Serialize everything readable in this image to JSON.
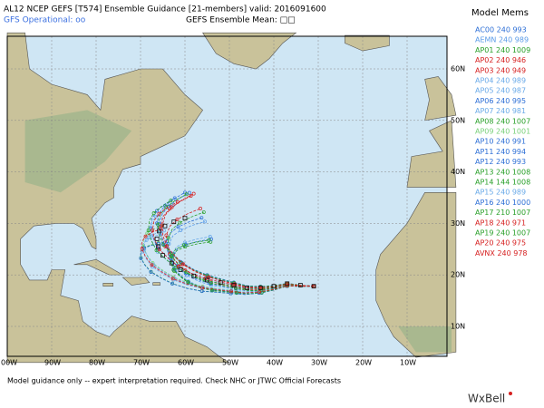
{
  "header": {
    "line1": "AL12 NCEP GEFS [T574] Ensemble Guidance [21-members] valid: 2016091600",
    "gfs_operational": "GFS Operational: oo",
    "ensemble_mean": "GEFS Ensemble Mean: □□"
  },
  "legend": {
    "title": "Model Mems",
    "entries": [
      {
        "text": "AC00 240 993",
        "color": "#2d6fd6"
      },
      {
        "text": "AEMN 240 989",
        "color": "#5a9be8"
      },
      {
        "text": "AP01 240 1009",
        "color": "#2aa02a"
      },
      {
        "text": "AP02 240 946",
        "color": "#d62020"
      },
      {
        "text": "AP03 240 949",
        "color": "#d62020"
      },
      {
        "text": "AP04 240 989",
        "color": "#6aaae8"
      },
      {
        "text": "AP05 240 987",
        "color": "#6aaae8"
      },
      {
        "text": "AP06 240 995",
        "color": "#2d6fd6"
      },
      {
        "text": "AP07 240 981",
        "color": "#6aaae8"
      },
      {
        "text": "AP08 240 1007",
        "color": "#2aa02a"
      },
      {
        "text": "AP09 240 1001",
        "color": "#7ad07a"
      },
      {
        "text": "AP10 240 991",
        "color": "#2d6fd6"
      },
      {
        "text": "AP11 240 994",
        "color": "#2d6fd6"
      },
      {
        "text": "AP12 240 993",
        "color": "#2d6fd6"
      },
      {
        "text": "AP13 240 1008",
        "color": "#2aa02a"
      },
      {
        "text": "AP14 144 1008",
        "color": "#2aa02a"
      },
      {
        "text": "AP15 240 989",
        "color": "#6aaae8"
      },
      {
        "text": "AP16 240 1000",
        "color": "#2d6fd6"
      },
      {
        "text": "AP17 210 1007",
        "color": "#2aa02a"
      },
      {
        "text": "AP18 240 971",
        "color": "#d62020"
      },
      {
        "text": "AP19 240 1007",
        "color": "#2aa02a"
      },
      {
        "text": "AP20 240 975",
        "color": "#d62020"
      },
      {
        "text": "AVNX 240 978",
        "color": "#d62020"
      }
    ]
  },
  "axes": {
    "lon_labels": [
      "00W",
      "90W",
      "80W",
      "70W",
      "60W",
      "50W",
      "40W",
      "30W",
      "20W",
      "10W"
    ],
    "lat_labels": [
      "60N",
      "50N",
      "40N",
      "30N",
      "20N",
      "10N"
    ]
  },
  "footer": "Model guidance only -- expert interpretation required.  Check NHC or JTWC Official Forecasts",
  "logo": "WxBell"
}
